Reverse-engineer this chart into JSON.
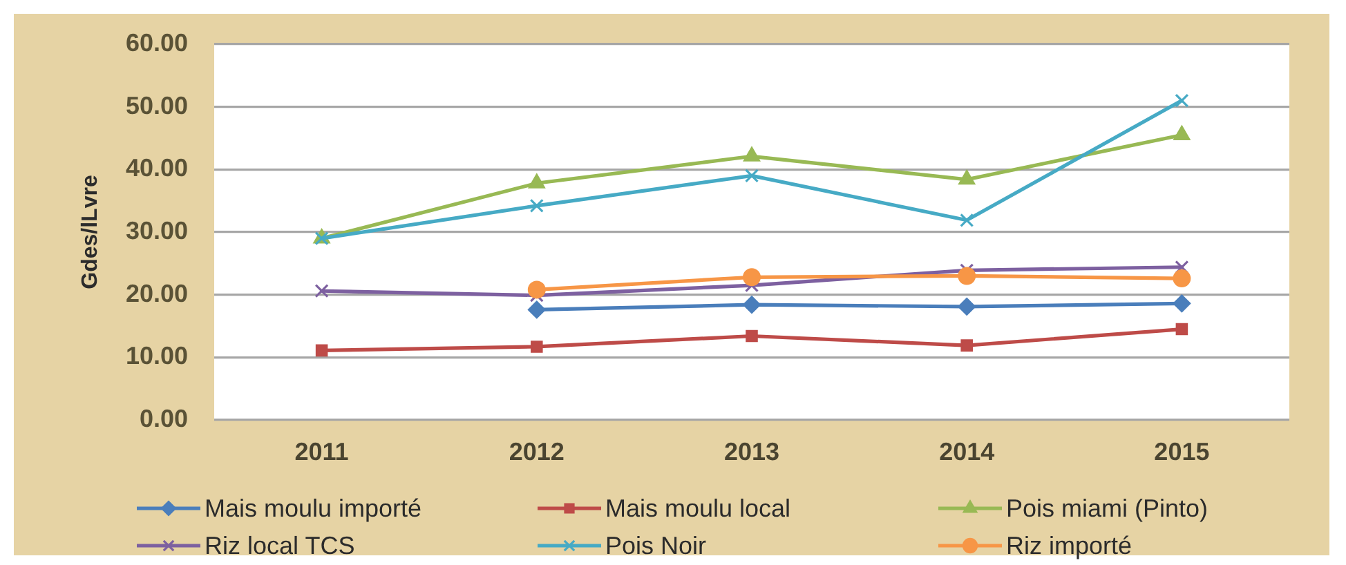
{
  "chart_data": {
    "type": "line",
    "ylabel": "Gdes/lLvre",
    "categories": [
      "2011",
      "2012",
      "2013",
      "2014",
      "2015"
    ],
    "series": [
      {
        "name": "Mais moulu importé",
        "color": "#4a7ebb",
        "marker": "diamond",
        "values": [
          null,
          17.6,
          18.4,
          18.1,
          18.6
        ]
      },
      {
        "name": "Mais moulu local",
        "color": "#be4b48",
        "marker": "square",
        "values": [
          11.1,
          11.7,
          13.4,
          11.9,
          14.5
        ]
      },
      {
        "name": "Pois miami (Pinto)",
        "color": "#98b954",
        "marker": "triangle",
        "values": [
          29.0,
          37.8,
          42.1,
          38.4,
          45.5
        ]
      },
      {
        "name": "Riz local TCS",
        "color": "#7d60a0",
        "marker": "cross",
        "values": [
          20.6,
          19.9,
          21.5,
          23.9,
          24.4
        ]
      },
      {
        "name": "Pois Noir",
        "color": "#46aac5",
        "marker": "cross",
        "values": [
          29.0,
          34.2,
          39.0,
          31.9,
          51.0
        ]
      },
      {
        "name": "Riz importé",
        "color": "#f79646",
        "marker": "circle",
        "values": [
          null,
          20.8,
          22.8,
          23.0,
          22.6
        ]
      }
    ],
    "ylim": [
      0,
      60
    ],
    "yticks": [
      {
        "value": 0,
        "label": "0.00"
      },
      {
        "value": 10,
        "label": "10.00"
      },
      {
        "value": 20,
        "label": "20.00"
      },
      {
        "value": 30,
        "label": "30.00"
      },
      {
        "value": 40,
        "label": "40.00"
      },
      {
        "value": 50,
        "label": "50.00"
      },
      {
        "value": 60,
        "label": "60.00"
      }
    ],
    "grid": "y",
    "legend": "bottom",
    "line_style": "solid"
  }
}
